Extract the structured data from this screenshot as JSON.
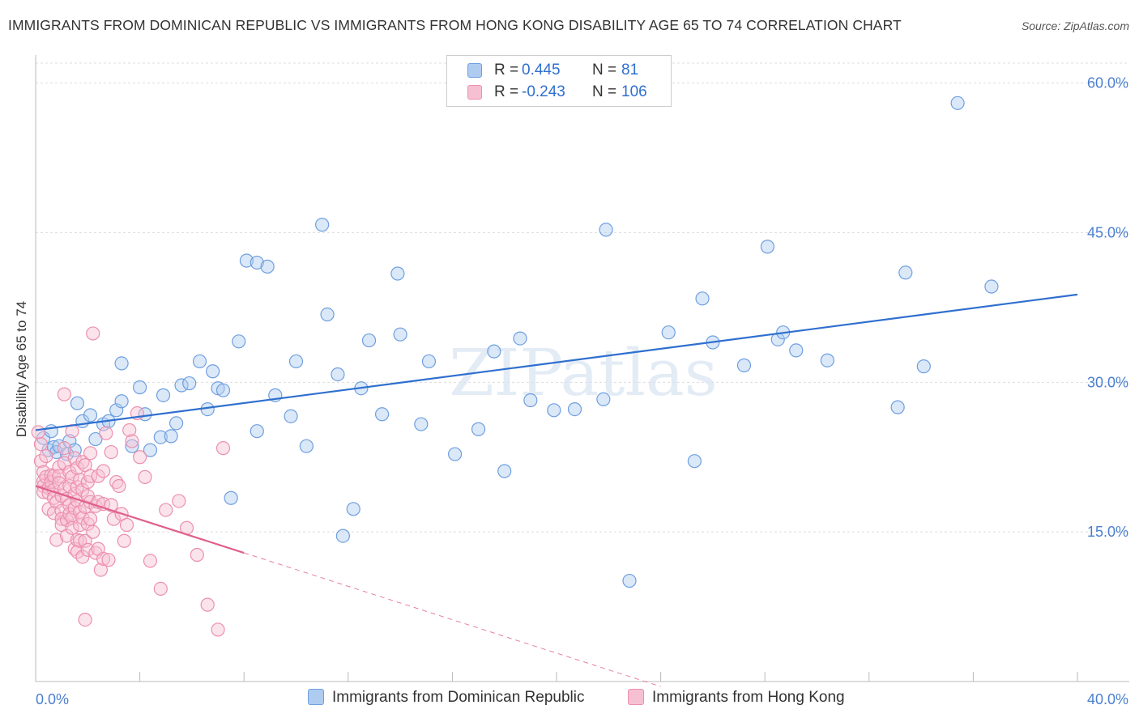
{
  "chart_data": {
    "type": "scatter",
    "title": "IMMIGRANTS FROM DOMINICAN REPUBLIC VS IMMIGRANTS FROM HONG KONG DISABILITY AGE 65 TO 74 CORRELATION CHART",
    "source": "Source: ZipAtlas.com",
    "watermark": "ZIPatlas",
    "xlabel": "",
    "ylabel": "Disability Age 65 to 74",
    "xlim": [
      0,
      40
    ],
    "ylim": [
      0,
      62
    ],
    "x_tick_labels": [
      "0.0%",
      "40.0%"
    ],
    "y_ticks": [
      15,
      30,
      45,
      60
    ],
    "y_tick_labels": [
      "15.0%",
      "30.0%",
      "45.0%",
      "60.0%"
    ],
    "grid": true,
    "legend_position": "top-center",
    "series": [
      {
        "name": "Immigrants from Dominican Republic",
        "color": "#6f9fe0",
        "fill": "#aecbf0",
        "line_color": "#2f6fcf",
        "r_label": "R =",
        "r_value": " 0.445",
        "n_label": "N =",
        "n_value": " 81",
        "trend": {
          "x": [
            0.0,
            40.0
          ],
          "y": [
            25.2,
            38.8
          ]
        },
        "points": [
          [
            0.3,
            24.4
          ],
          [
            0.5,
            23.2
          ],
          [
            0.7,
            23.5
          ],
          [
            0.6,
            25.1
          ],
          [
            0.8,
            23.0
          ],
          [
            0.9,
            23.6
          ],
          [
            1.2,
            22.8
          ],
          [
            1.3,
            24.1
          ],
          [
            1.5,
            23.2
          ],
          [
            1.6,
            27.9
          ],
          [
            1.8,
            26.1
          ],
          [
            2.1,
            26.7
          ],
          [
            2.3,
            24.3
          ],
          [
            2.6,
            25.8
          ],
          [
            2.8,
            26.1
          ],
          [
            3.1,
            27.2
          ],
          [
            3.3,
            28.1
          ],
          [
            3.3,
            31.9
          ],
          [
            3.7,
            23.6
          ],
          [
            4.0,
            29.5
          ],
          [
            4.2,
            26.8
          ],
          [
            4.4,
            23.2
          ],
          [
            4.8,
            24.5
          ],
          [
            4.9,
            28.7
          ],
          [
            5.2,
            24.6
          ],
          [
            5.4,
            25.9
          ],
          [
            5.6,
            29.7
          ],
          [
            5.9,
            29.9
          ],
          [
            6.3,
            32.1
          ],
          [
            6.6,
            27.3
          ],
          [
            6.8,
            31.1
          ],
          [
            7.0,
            29.4
          ],
          [
            7.2,
            29.2
          ],
          [
            7.5,
            18.4
          ],
          [
            7.8,
            34.1
          ],
          [
            8.1,
            42.2
          ],
          [
            8.5,
            42.0
          ],
          [
            8.5,
            25.1
          ],
          [
            8.9,
            41.6
          ],
          [
            9.2,
            28.7
          ],
          [
            9.8,
            26.6
          ],
          [
            10.0,
            32.1
          ],
          [
            10.4,
            23.6
          ],
          [
            11.0,
            45.8
          ],
          [
            11.2,
            36.8
          ],
          [
            11.6,
            30.8
          ],
          [
            11.8,
            14.6
          ],
          [
            12.2,
            17.3
          ],
          [
            12.5,
            29.4
          ],
          [
            12.8,
            34.2
          ],
          [
            13.3,
            26.8
          ],
          [
            13.9,
            40.9
          ],
          [
            14.0,
            34.8
          ],
          [
            14.8,
            25.8
          ],
          [
            15.1,
            32.1
          ],
          [
            16.1,
            22.8
          ],
          [
            17.0,
            25.3
          ],
          [
            17.6,
            33.1
          ],
          [
            18.0,
            21.1
          ],
          [
            18.6,
            34.4
          ],
          [
            19.0,
            28.2
          ],
          [
            19.9,
            27.2
          ],
          [
            20.7,
            27.3
          ],
          [
            21.8,
            28.3
          ],
          [
            21.9,
            45.3
          ],
          [
            22.8,
            10.1
          ],
          [
            24.3,
            35.0
          ],
          [
            25.3,
            22.1
          ],
          [
            25.6,
            38.4
          ],
          [
            26.0,
            34.0
          ],
          [
            27.2,
            31.7
          ],
          [
            28.1,
            43.6
          ],
          [
            28.5,
            34.3
          ],
          [
            28.7,
            35.0
          ],
          [
            29.2,
            33.2
          ],
          [
            30.4,
            32.2
          ],
          [
            33.1,
            27.5
          ],
          [
            33.4,
            41.0
          ],
          [
            34.1,
            31.6
          ],
          [
            35.4,
            58.0
          ],
          [
            36.7,
            39.6
          ]
        ]
      },
      {
        "name": "Immigrants from Hong Kong",
        "color": "#ec8fae",
        "fill": "#f6c0d2",
        "line_color": "#e0608a",
        "r_label": "R =",
        "r_value": "-0.243",
        "n_label": "N =",
        "n_value": "106",
        "trend": {
          "x": [
            0.0,
            8.0
          ],
          "y": [
            19.6,
            12.9
          ]
        },
        "trend_extension": {
          "x": [
            8.0,
            24.0
          ],
          "y": [
            12.9,
            -0.5
          ]
        },
        "points": [
          [
            0.1,
            25.0
          ],
          [
            0.2,
            23.8
          ],
          [
            0.2,
            22.1
          ],
          [
            0.3,
            21.0
          ],
          [
            0.3,
            20.1
          ],
          [
            0.3,
            19.6
          ],
          [
            0.3,
            19.0
          ],
          [
            0.4,
            22.6
          ],
          [
            0.4,
            20.5
          ],
          [
            0.5,
            19.4
          ],
          [
            0.5,
            18.9
          ],
          [
            0.5,
            17.3
          ],
          [
            0.6,
            20.7
          ],
          [
            0.6,
            20.0
          ],
          [
            0.7,
            20.6
          ],
          [
            0.7,
            19.2
          ],
          [
            0.7,
            18.4
          ],
          [
            0.7,
            16.9
          ],
          [
            0.8,
            18.0
          ],
          [
            0.8,
            14.2
          ],
          [
            0.9,
            21.5
          ],
          [
            0.9,
            20.6
          ],
          [
            0.9,
            19.9
          ],
          [
            1.0,
            18.6
          ],
          [
            1.0,
            17.1
          ],
          [
            1.0,
            16.3
          ],
          [
            1.0,
            15.7
          ],
          [
            1.1,
            28.8
          ],
          [
            1.1,
            23.4
          ],
          [
            1.1,
            21.9
          ],
          [
            1.1,
            19.3
          ],
          [
            1.2,
            18.3
          ],
          [
            1.2,
            16.2
          ],
          [
            1.2,
            14.6
          ],
          [
            1.3,
            21.0
          ],
          [
            1.3,
            19.6
          ],
          [
            1.3,
            17.7
          ],
          [
            1.3,
            16.8
          ],
          [
            1.4,
            25.1
          ],
          [
            1.4,
            20.5
          ],
          [
            1.4,
            16.4
          ],
          [
            1.4,
            15.4
          ],
          [
            1.5,
            22.4
          ],
          [
            1.5,
            18.8
          ],
          [
            1.5,
            17.4
          ],
          [
            1.5,
            13.3
          ],
          [
            1.6,
            21.4
          ],
          [
            1.6,
            19.5
          ],
          [
            1.6,
            18.1
          ],
          [
            1.6,
            14.2
          ],
          [
            1.6,
            13.0
          ],
          [
            1.7,
            20.2
          ],
          [
            1.7,
            17.0
          ],
          [
            1.7,
            15.7
          ],
          [
            1.7,
            14.1
          ],
          [
            1.8,
            22.0
          ],
          [
            1.8,
            19.2
          ],
          [
            1.8,
            16.4
          ],
          [
            1.8,
            12.5
          ],
          [
            1.9,
            21.7
          ],
          [
            1.9,
            17.5
          ],
          [
            1.9,
            14.1
          ],
          [
            1.9,
            6.2
          ],
          [
            2.0,
            20.0
          ],
          [
            2.0,
            18.6
          ],
          [
            2.0,
            15.8
          ],
          [
            2.0,
            13.2
          ],
          [
            2.1,
            22.9
          ],
          [
            2.1,
            20.6
          ],
          [
            2.1,
            18.0
          ],
          [
            2.1,
            16.3
          ],
          [
            2.2,
            34.9
          ],
          [
            2.2,
            15.0
          ],
          [
            2.3,
            17.6
          ],
          [
            2.3,
            12.9
          ],
          [
            2.4,
            20.6
          ],
          [
            2.4,
            18.0
          ],
          [
            2.4,
            13.3
          ],
          [
            2.5,
            11.2
          ],
          [
            2.6,
            21.1
          ],
          [
            2.6,
            17.8
          ],
          [
            2.6,
            12.3
          ],
          [
            2.7,
            24.9
          ],
          [
            2.8,
            12.2
          ],
          [
            2.9,
            23.0
          ],
          [
            2.9,
            17.7
          ],
          [
            3.0,
            16.3
          ],
          [
            3.1,
            20.0
          ],
          [
            3.2,
            19.6
          ],
          [
            3.3,
            16.8
          ],
          [
            3.4,
            14.1
          ],
          [
            3.5,
            15.7
          ],
          [
            3.6,
            25.2
          ],
          [
            3.7,
            24.1
          ],
          [
            3.9,
            26.9
          ],
          [
            4.0,
            22.5
          ],
          [
            4.2,
            20.5
          ],
          [
            4.4,
            12.1
          ],
          [
            4.8,
            9.3
          ],
          [
            5.0,
            17.2
          ],
          [
            5.5,
            18.1
          ],
          [
            5.8,
            15.4
          ],
          [
            6.2,
            12.7
          ],
          [
            6.6,
            7.7
          ],
          [
            7.0,
            5.2
          ],
          [
            7.2,
            23.4
          ]
        ]
      }
    ]
  }
}
